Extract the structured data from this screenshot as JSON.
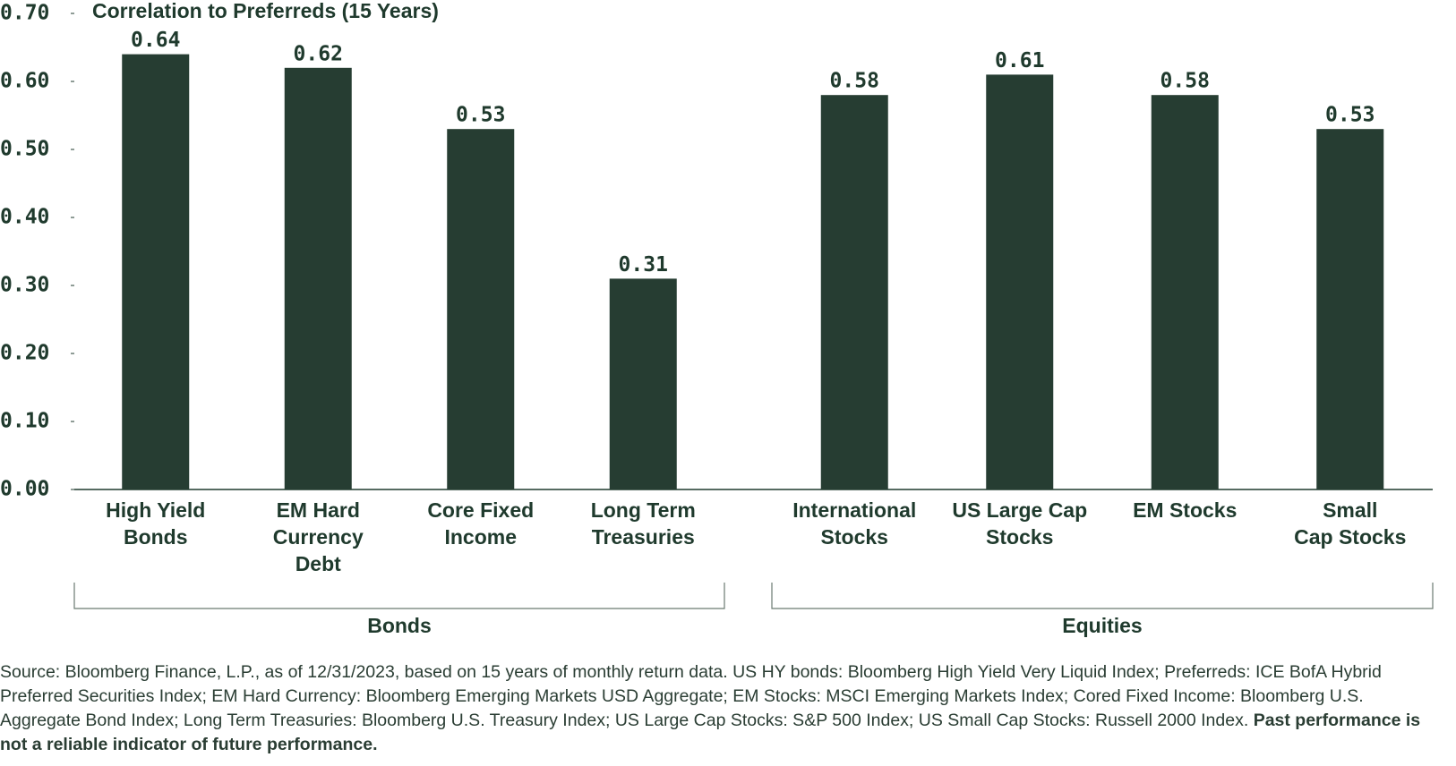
{
  "chart_data": {
    "type": "bar",
    "title": "Correlation to Preferreds (15 Years)",
    "color": "#263d32",
    "ylim": [
      0,
      0.7
    ],
    "yticks": [
      {
        "value": 0,
        "label": "0.00"
      },
      {
        "value": 0.1,
        "label": "0.10"
      },
      {
        "value": 0.2,
        "label": "0.20"
      },
      {
        "value": 0.3,
        "label": "0.30"
      },
      {
        "value": 0.4,
        "label": "0.40"
      },
      {
        "value": 0.5,
        "label": "0.50"
      },
      {
        "value": 0.6,
        "label": "0.60"
      },
      {
        "value": 0.7,
        "label": "0.70"
      }
    ],
    "groups": [
      {
        "name": "Bonds",
        "categories": [
          [
            "High Yield",
            "Bonds"
          ],
          [
            "EM Hard",
            "Currency",
            "Debt"
          ],
          [
            "Core Fixed",
            "Income"
          ],
          [
            "Long Term",
            "Treasuries"
          ]
        ],
        "values": [
          0.64,
          0.62,
          0.53,
          0.31
        ]
      },
      {
        "name": "Equities",
        "categories": [
          [
            "International",
            "Stocks"
          ],
          [
            "US Large Cap",
            "Stocks"
          ],
          [
            "EM Stocks"
          ],
          [
            "Small",
            "Cap Stocks"
          ]
        ],
        "values": [
          0.58,
          0.61,
          0.58,
          0.53
        ]
      }
    ]
  },
  "footnote": {
    "text": "Source: Bloomberg Finance, L.P., as of 12/31/2023, based on 15 years of monthly return data. US HY bonds: Bloomberg High Yield Very Liquid Index; Preferreds: ICE BofA Hybrid Preferred Securities Index; EM Hard Currency: Bloomberg Emerging Markets USD Aggregate; EM Stocks: MSCI Emerging Markets Index; Cored Fixed Income: Bloomberg U.S. Aggregate Bond Index; Long Term Treasuries: Bloomberg U.S. Treasury Index; US Large Cap Stocks: S&P 500 Index; US Small Cap Stocks: Russell 2000 Index.",
    "emphasis": "Past performance is not a reliable indicator of future performance."
  }
}
